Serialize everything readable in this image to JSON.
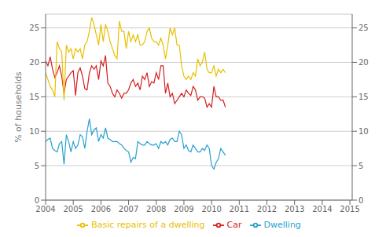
{
  "chart_data": {
    "type": "line",
    "y_label": "% of households",
    "x": [
      2004,
      2004.0833,
      2004.1667,
      2004.25,
      2004.3333,
      2004.4167,
      2004.5,
      2004.5833,
      2004.6667,
      2004.75,
      2004.8333,
      2004.9167,
      2005,
      2005.0833,
      2005.1667,
      2005.25,
      2005.3333,
      2005.4167,
      2005.5,
      2005.5833,
      2005.6667,
      2005.75,
      2005.8333,
      2005.9167,
      2006,
      2006.0833,
      2006.1667,
      2006.25,
      2006.3333,
      2006.4167,
      2006.5,
      2006.5833,
      2006.6667,
      2006.75,
      2006.8333,
      2006.9167,
      2007,
      2007.0833,
      2007.1667,
      2007.25,
      2007.3333,
      2007.4167,
      2007.5,
      2007.5833,
      2007.6667,
      2007.75,
      2007.8333,
      2007.9167,
      2008,
      2008.0833,
      2008.1667,
      2008.25,
      2008.3333,
      2008.4167,
      2008.5,
      2008.5833,
      2008.6667,
      2008.75,
      2008.8333,
      2008.9167,
      2009,
      2009.0833,
      2009.1667,
      2009.25,
      2009.3333,
      2009.4167,
      2009.5,
      2009.5833,
      2009.6667,
      2009.75,
      2009.8333,
      2009.9167,
      2010,
      2010.0833,
      2010.1667,
      2010.25,
      2010.3333,
      2010.4167,
      2010.5
    ],
    "series": [
      {
        "name": "Car",
        "color": "#d42020",
        "values": [
          20.2,
          19.5,
          20.8,
          19.0,
          17.8,
          18.5,
          19.5,
          18.0,
          15.5,
          17.5,
          18.0,
          18.5,
          18.8,
          15.2,
          18.5,
          19.2,
          18.0,
          16.2,
          16.0,
          18.5,
          19.5,
          19.0,
          19.5,
          17.5,
          20.2,
          19.5,
          21.0,
          17.0,
          16.5,
          15.5,
          15.0,
          16.0,
          15.5,
          14.8,
          15.5,
          15.5,
          16.0,
          17.0,
          17.5,
          16.5,
          17.0,
          16.0,
          18.0,
          17.5,
          18.5,
          16.5,
          17.2,
          17.0,
          18.5,
          17.5,
          19.5,
          19.5,
          15.5,
          17.0,
          15.0,
          15.5,
          14.0,
          14.5,
          15.0,
          15.5,
          15.0,
          16.0,
          15.5,
          15.2,
          16.5,
          16.0,
          14.5,
          15.0,
          15.0,
          14.8,
          13.5,
          14.0,
          13.5,
          16.5,
          15.0,
          15.0,
          14.5,
          14.5,
          13.5
        ]
      },
      {
        "name": "Dwelling",
        "color": "#28a0d0",
        "values": [
          8.5,
          8.8,
          9.0,
          7.5,
          7.2,
          7.0,
          8.2,
          8.5,
          5.2,
          9.5,
          8.5,
          7.0,
          8.5,
          7.5,
          8.0,
          9.5,
          9.2,
          7.5,
          10.0,
          11.8,
          9.5,
          10.2,
          10.5,
          8.5,
          9.5,
          9.0,
          10.5,
          9.0,
          8.8,
          8.5,
          8.5,
          8.5,
          8.2,
          8.0,
          7.5,
          7.2,
          7.0,
          5.5,
          6.2,
          6.0,
          8.5,
          8.2,
          8.0,
          8.0,
          8.5,
          8.2,
          8.0,
          8.0,
          8.2,
          7.5,
          8.5,
          8.2,
          8.5,
          8.0,
          8.8,
          9.0,
          8.5,
          8.5,
          10.0,
          9.5,
          7.5,
          8.0,
          7.2,
          7.0,
          8.0,
          7.5,
          7.0,
          7.0,
          7.5,
          7.2,
          8.0,
          7.5,
          5.0,
          4.5,
          5.5,
          6.0,
          7.5,
          7.0,
          6.5
        ]
      },
      {
        "name": "Basic repairs of a dwelling",
        "color": "#e8c000",
        "values": [
          18.5,
          17.5,
          16.5,
          16.0,
          15.0,
          23.0,
          22.0,
          21.5,
          14.5,
          22.5,
          21.5,
          22.0,
          20.5,
          22.0,
          21.5,
          22.0,
          20.5,
          22.5,
          23.0,
          24.5,
          26.5,
          25.5,
          24.0,
          22.5,
          25.5,
          23.0,
          25.5,
          24.5,
          23.0,
          22.0,
          21.0,
          20.5,
          26.0,
          24.5,
          24.5,
          22.0,
          24.5,
          23.0,
          24.0,
          23.0,
          24.0,
          22.5,
          22.5,
          23.0,
          24.5,
          25.0,
          23.5,
          23.0,
          23.0,
          22.5,
          23.5,
          22.5,
          20.5,
          22.5,
          25.0,
          24.0,
          25.0,
          22.5,
          22.5,
          19.5,
          18.0,
          17.5,
          18.0,
          17.5,
          18.5,
          18.0,
          20.5,
          19.5,
          20.0,
          21.5,
          19.0,
          18.5,
          18.5,
          19.5,
          18.0,
          19.0,
          18.5,
          19.0,
          18.5
        ]
      }
    ],
    "xlim": [
      2004.0,
      2015.083
    ],
    "xticks": [
      2004,
      2005,
      2006,
      2007,
      2008,
      2009,
      2010,
      2011,
      2012,
      2013,
      2014,
      2015
    ],
    "ylim": [
      0,
      27
    ],
    "yticks": [
      0,
      5,
      10,
      15,
      20,
      25
    ],
    "y2lim": [
      0,
      27
    ],
    "y2ticks": [
      0,
      5,
      10,
      15,
      20,
      25
    ],
    "grid": true,
    "legend": "bottom"
  }
}
